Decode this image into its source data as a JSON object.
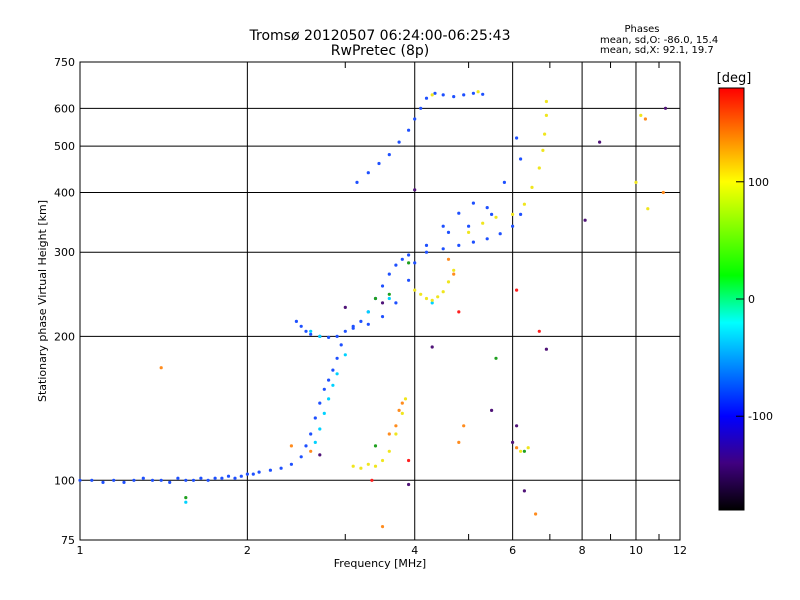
{
  "chart_data": {
    "type": "scatter",
    "title": "Tromsø 20120507 06:24:00-06:25:43",
    "subtitle": "RwPretec (8p)",
    "xlabel": "Frequency [MHz]",
    "ylabel": "Stationary phase Virtual Height [km]",
    "x_scale": "log",
    "y_scale": "log",
    "xlim": [
      1,
      12
    ],
    "ylim": [
      75,
      750
    ],
    "x_ticks": [
      1,
      2,
      4,
      6,
      8,
      10,
      12
    ],
    "y_ticks": [
      75,
      100,
      200,
      300,
      400,
      500,
      600,
      750
    ],
    "grid": true,
    "stats": {
      "header": "Phases",
      "line1": "mean, sd,O:  -86.0, 15.4",
      "line2": "mean, sd,X:  92.1, 19.7"
    },
    "colorbar": {
      "label": "[deg]",
      "range": [
        -180,
        180
      ],
      "ticks": [
        100,
        0,
        -100
      ],
      "colors": [
        "#ff0000",
        "#ff8000",
        "#ffff00",
        "#80ff00",
        "#00ff00",
        "#00ffff",
        "#0080ff",
        "#0000ff",
        "#400080",
        "#000000"
      ]
    },
    "series": [
      {
        "color": "#1e50ff",
        "points": [
          [
            1.0,
            100
          ],
          [
            1.05,
            100
          ],
          [
            1.1,
            99
          ],
          [
            1.15,
            100
          ],
          [
            1.2,
            99
          ],
          [
            1.25,
            100
          ],
          [
            1.3,
            101
          ],
          [
            1.35,
            100
          ],
          [
            1.4,
            100
          ],
          [
            1.45,
            99
          ],
          [
            1.5,
            101
          ],
          [
            1.55,
            100
          ],
          [
            1.6,
            100
          ],
          [
            1.65,
            101
          ],
          [
            1.7,
            100
          ],
          [
            1.75,
            101
          ],
          [
            1.8,
            101
          ],
          [
            1.85,
            102
          ],
          [
            1.9,
            101
          ],
          [
            1.95,
            102
          ],
          [
            2.0,
            103
          ],
          [
            2.05,
            103
          ],
          [
            2.1,
            104
          ],
          [
            2.2,
            105
          ],
          [
            2.3,
            106
          ],
          [
            2.4,
            108
          ],
          [
            2.5,
            112
          ],
          [
            2.55,
            118
          ],
          [
            2.6,
            125
          ],
          [
            2.65,
            135
          ],
          [
            2.7,
            145
          ],
          [
            2.75,
            155
          ],
          [
            2.8,
            162
          ],
          [
            2.85,
            170
          ],
          [
            2.9,
            180
          ],
          [
            2.95,
            192
          ],
          [
            2.45,
            215
          ],
          [
            2.5,
            210
          ],
          [
            2.55,
            205
          ],
          [
            2.6,
            202
          ],
          [
            2.7,
            200
          ],
          [
            2.8,
            199
          ],
          [
            2.9,
            200
          ],
          [
            3.0,
            205
          ],
          [
            3.1,
            208
          ],
          [
            3.2,
            215
          ],
          [
            3.3,
            225
          ],
          [
            3.4,
            240
          ],
          [
            3.5,
            255
          ],
          [
            3.6,
            270
          ],
          [
            3.7,
            282
          ],
          [
            3.8,
            290
          ],
          [
            3.9,
            296
          ],
          [
            3.15,
            420
          ],
          [
            3.3,
            440
          ],
          [
            3.45,
            460
          ],
          [
            3.6,
            480
          ],
          [
            3.75,
            510
          ],
          [
            3.9,
            540
          ],
          [
            4.0,
            570
          ],
          [
            4.1,
            600
          ],
          [
            4.2,
            630
          ],
          [
            4.35,
            645
          ],
          [
            4.5,
            640
          ],
          [
            4.7,
            635
          ],
          [
            4.9,
            640
          ],
          [
            5.1,
            645
          ],
          [
            5.3,
            642
          ],
          [
            3.1,
            210
          ],
          [
            3.3,
            212
          ],
          [
            3.5,
            220
          ],
          [
            3.7,
            235
          ],
          [
            3.9,
            262
          ],
          [
            4.0,
            285
          ],
          [
            4.2,
            310
          ],
          [
            4.5,
            340
          ],
          [
            4.8,
            362
          ],
          [
            5.1,
            380
          ],
          [
            5.4,
            372
          ],
          [
            4.2,
            300
          ],
          [
            4.5,
            305
          ],
          [
            4.8,
            310
          ],
          [
            5.1,
            315
          ],
          [
            5.4,
            320
          ],
          [
            5.7,
            328
          ],
          [
            6.0,
            340
          ],
          [
            6.2,
            360
          ],
          [
            4.6,
            330
          ],
          [
            5.0,
            340
          ],
          [
            5.5,
            360
          ],
          [
            5.8,
            420
          ],
          [
            6.2,
            470
          ],
          [
            6.1,
            520
          ]
        ]
      },
      {
        "color": "#00d2ff",
        "points": [
          [
            2.65,
            120
          ],
          [
            2.7,
            128
          ],
          [
            2.75,
            138
          ],
          [
            2.8,
            148
          ],
          [
            2.85,
            158
          ],
          [
            2.9,
            167
          ],
          [
            3.0,
            183
          ],
          [
            1.55,
            90
          ],
          [
            3.3,
            225
          ],
          [
            3.6,
            240
          ],
          [
            4.3,
            235
          ],
          [
            2.7,
            200
          ],
          [
            2.6,
            205
          ]
        ]
      },
      {
        "color": "#f0e61e",
        "points": [
          [
            3.1,
            107
          ],
          [
            3.2,
            106
          ],
          [
            3.3,
            108
          ],
          [
            3.4,
            107
          ],
          [
            3.5,
            110
          ],
          [
            3.6,
            115
          ],
          [
            3.7,
            125
          ],
          [
            3.8,
            138
          ],
          [
            3.85,
            148
          ],
          [
            4.0,
            250
          ],
          [
            4.1,
            245
          ],
          [
            4.2,
            240
          ],
          [
            4.3,
            238
          ],
          [
            4.4,
            242
          ],
          [
            4.5,
            248
          ],
          [
            4.6,
            260
          ],
          [
            4.7,
            275
          ],
          [
            5.0,
            330
          ],
          [
            5.3,
            345
          ],
          [
            5.6,
            355
          ],
          [
            6.0,
            360
          ],
          [
            6.3,
            378
          ],
          [
            6.5,
            410
          ],
          [
            6.7,
            450
          ],
          [
            6.8,
            490
          ],
          [
            6.85,
            530
          ],
          [
            6.9,
            580
          ],
          [
            6.9,
            620
          ],
          [
            5.2,
            650
          ],
          [
            4.3,
            640
          ],
          [
            6.2,
            115
          ],
          [
            6.4,
            117
          ],
          [
            10.0,
            420
          ],
          [
            10.2,
            580
          ],
          [
            10.5,
            370
          ]
        ]
      },
      {
        "color": "#ff8c1e",
        "points": [
          [
            3.6,
            125
          ],
          [
            3.7,
            130
          ],
          [
            3.75,
            140
          ],
          [
            3.8,
            145
          ],
          [
            4.7,
            270
          ],
          [
            4.6,
            290
          ],
          [
            2.6,
            115
          ],
          [
            4.8,
            120
          ],
          [
            4.9,
            130
          ],
          [
            6.1,
            117
          ],
          [
            10.4,
            570
          ],
          [
            11.2,
            400
          ],
          [
            1.4,
            172
          ],
          [
            2.4,
            118
          ],
          [
            6.6,
            85
          ],
          [
            3.5,
            80
          ]
        ]
      },
      {
        "color": "#20a020",
        "points": [
          [
            3.4,
            240
          ],
          [
            3.6,
            245
          ],
          [
            3.9,
            285
          ],
          [
            1.55,
            92
          ],
          [
            3.4,
            118
          ],
          [
            6.3,
            115
          ],
          [
            5.6,
            180
          ]
        ]
      },
      {
        "color": "#ff1e1e",
        "points": [
          [
            3.35,
            100
          ],
          [
            4.8,
            225
          ],
          [
            6.1,
            250
          ],
          [
            6.7,
            205
          ],
          [
            3.9,
            110
          ]
        ]
      },
      {
        "color": "#501478",
        "points": [
          [
            2.7,
            113
          ],
          [
            3.0,
            230
          ],
          [
            3.5,
            235
          ],
          [
            3.9,
            98
          ],
          [
            4.3,
            190
          ],
          [
            5.5,
            140
          ],
          [
            6.0,
            120
          ],
          [
            6.3,
            95
          ],
          [
            6.9,
            188
          ],
          [
            8.1,
            350
          ],
          [
            8.6,
            510
          ],
          [
            11.3,
            600
          ],
          [
            4.0,
            405
          ],
          [
            6.1,
            130
          ]
        ]
      }
    ]
  }
}
